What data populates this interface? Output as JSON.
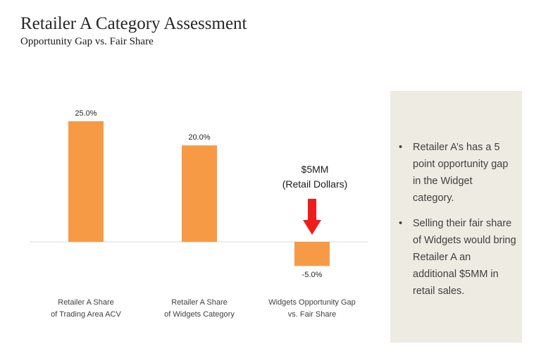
{
  "header": {
    "title": "Retailer A Category Assessment",
    "subtitle": "Opportunity Gap vs. Fair Share"
  },
  "colors": {
    "bar": "#f79a46",
    "arrow": "#ee1c1c",
    "panel": "#eeebe2",
    "axis": "#d9d9d9"
  },
  "callout": {
    "amount": "$5MM",
    "note": "(Retail Dollars)",
    "arrow_icon": "arrow-down-icon"
  },
  "notes": {
    "items": [
      "Retailer A’s has a 5 point opportunity gap in the Widget category.",
      "Selling their fair share of Widgets would bring Retailer A an additional $5MM in retail sales."
    ]
  },
  "chart_data": {
    "type": "bar",
    "categories": [
      [
        "Retailer A Share",
        "of Trading Area ACV"
      ],
      [
        "Retailer A Share",
        "of Widgets Category"
      ],
      [
        "Widgets Opportunity Gap",
        "vs. Fair Share"
      ]
    ],
    "values": [
      25.0,
      20.0,
      -5.0
    ],
    "data_labels": [
      "25.0%",
      "20.0%",
      "-5.0%"
    ],
    "ylim": [
      -5,
      25
    ],
    "grid": false,
    "legend": "none"
  }
}
